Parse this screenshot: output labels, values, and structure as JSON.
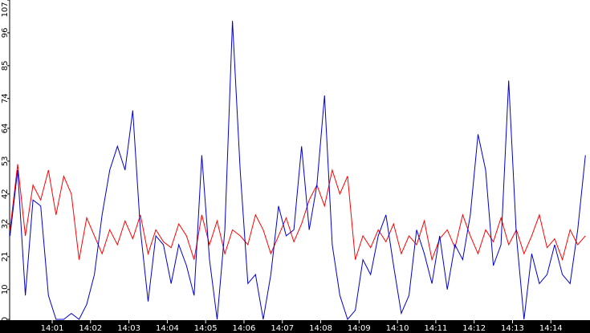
{
  "chart_data": {
    "type": "line",
    "x": [
      -0.1,
      0.1,
      0.3,
      0.5,
      0.7,
      0.9,
      1.1,
      1.3,
      1.5,
      1.7,
      1.9,
      2.1,
      2.3,
      2.5,
      2.7,
      2.9,
      3.1,
      3.3,
      3.5,
      3.7,
      3.9,
      4.1,
      4.3,
      4.5,
      4.7,
      4.9,
      5.1,
      5.3,
      5.5,
      5.7,
      5.9,
      6.1,
      6.3,
      6.5,
      6.7,
      6.9,
      7.1,
      7.3,
      7.5,
      7.7,
      7.9,
      8.1,
      8.3,
      8.5,
      8.7,
      8.9,
      9.1,
      9.3,
      9.5,
      9.7,
      9.9,
      10.1,
      10.3,
      10.5,
      10.7,
      10.9,
      11.1,
      11.3,
      11.5,
      11.7,
      11.9,
      12.1,
      12.3,
      12.5,
      12.7,
      12.9,
      13.1,
      13.3,
      13.5,
      13.7,
      13.9,
      14.1,
      14.3,
      14.5,
      14.7,
      14.9
    ],
    "series": [
      {
        "color": "#ff0000",
        "values": [
          30,
          52,
          28,
          45,
          40,
          50,
          35,
          48,
          42,
          20,
          34,
          28,
          22,
          30,
          25,
          33,
          27,
          35,
          22,
          30,
          26,
          24,
          32,
          28,
          20,
          35,
          25,
          33,
          22,
          30,
          28,
          25,
          35,
          30,
          22,
          28,
          34,
          26,
          32,
          40,
          45,
          38,
          50,
          42,
          48,
          20,
          28,
          24,
          30,
          26,
          32,
          22,
          28,
          25,
          33,
          20,
          27,
          30,
          24,
          35,
          28,
          22,
          30,
          26,
          34,
          25,
          30,
          22,
          28,
          35,
          24,
          27,
          20,
          30,
          25,
          28
        ]
      },
      {
        "color": "#0000cc",
        "values": [
          28,
          50,
          8,
          40,
          38,
          8,
          0,
          0,
          2,
          0,
          5,
          15,
          35,
          50,
          58,
          50,
          70,
          30,
          6,
          28,
          25,
          12,
          25,
          18,
          8,
          55,
          20,
          0,
          30,
          100,
          50,
          12,
          15,
          0,
          15,
          38,
          28,
          30,
          58,
          30,
          45,
          75,
          25,
          8,
          0,
          3,
          20,
          15,
          28,
          35,
          18,
          2,
          8,
          30,
          22,
          12,
          28,
          10,
          25,
          20,
          35,
          62,
          50,
          18,
          25,
          80,
          28,
          0,
          22,
          12,
          15,
          25,
          15,
          12,
          30,
          55
        ]
      }
    ],
    "xlim": [
      -0.11,
      15.02
    ],
    "xticks": [
      {
        "value": 1,
        "label": "14:01"
      },
      {
        "value": 2,
        "label": "14:02"
      },
      {
        "value": 3,
        "label": "14:03"
      },
      {
        "value": 4,
        "label": "14:04"
      },
      {
        "value": 5,
        "label": "14:05"
      },
      {
        "value": 6,
        "label": "14:06"
      },
      {
        "value": 7,
        "label": "14:07"
      },
      {
        "value": 8,
        "label": "14:08"
      },
      {
        "value": 9,
        "label": "14:09"
      },
      {
        "value": 10,
        "label": "14:10"
      },
      {
        "value": 11,
        "label": "14:11"
      },
      {
        "value": 12,
        "label": "14:12"
      },
      {
        "value": 13,
        "label": "14:13"
      },
      {
        "value": 14,
        "label": "14:14"
      }
    ],
    "ylim": [
      0,
      107
    ],
    "yticks": [
      0,
      10,
      21,
      32,
      42,
      53,
      64,
      74,
      85,
      96,
      107
    ]
  }
}
